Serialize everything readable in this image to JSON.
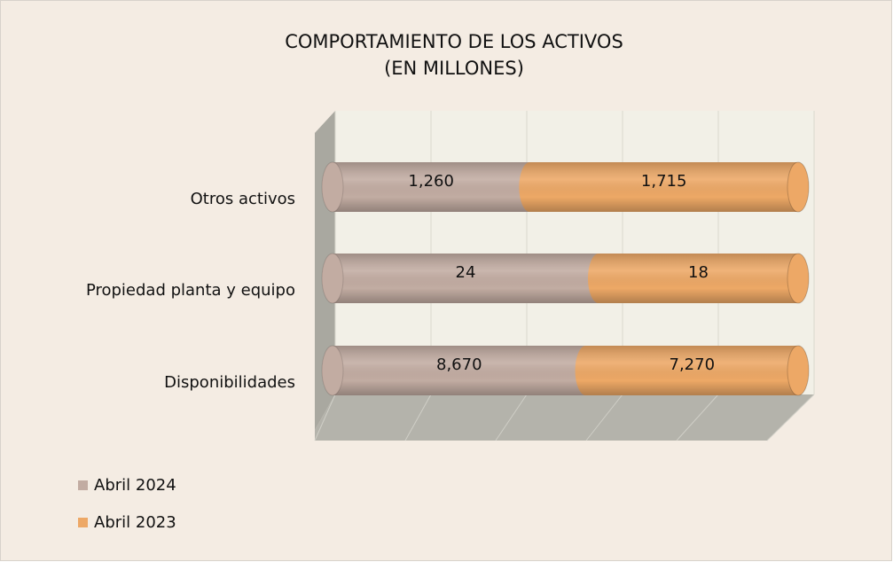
{
  "chart_data": {
    "type": "bar",
    "orientation": "horizontal",
    "stacking": "percent",
    "style": "3d-cylinder",
    "title": "COMPORTAMIENTO DE LOS ACTIVOS",
    "subtitle": "(EN MILLONES)",
    "categories": [
      "Otros activos",
      "Propiedad planta y equipo",
      "Disponibilidades"
    ],
    "series": [
      {
        "name": "Abril 2024",
        "color": "#c2aca2",
        "values": [
          1260,
          24,
          8670
        ],
        "value_labels": [
          "1,260",
          "24",
          "8,670"
        ]
      },
      {
        "name": "Abril 2023",
        "color": "#eda866",
        "values": [
          1715,
          18,
          7270
        ],
        "value_labels": [
          "1,715",
          "18",
          "7,270"
        ]
      }
    ],
    "xlim": [
      0,
      100
    ],
    "xticks": [
      0,
      20,
      40,
      60,
      80,
      100
    ],
    "grid": true,
    "legend": "bottom-left"
  }
}
